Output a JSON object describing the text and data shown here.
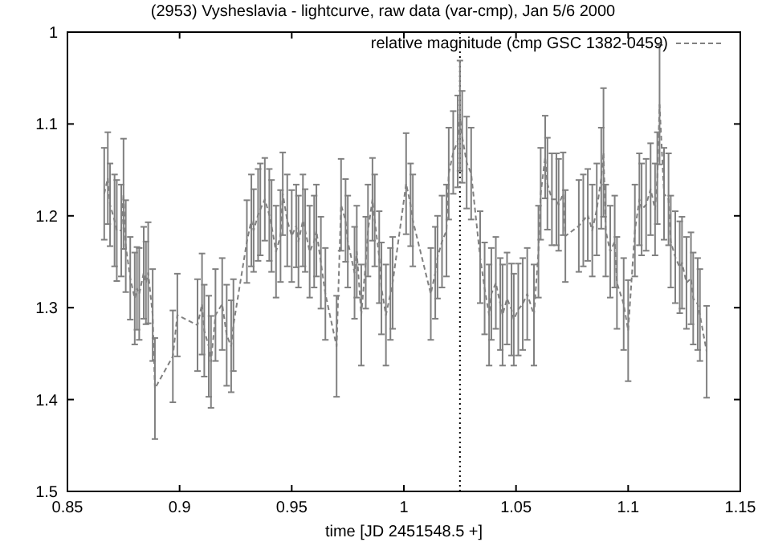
{
  "chart_data": {
    "type": "line",
    "title": "(2953) Vysheslavia - lightcurve, raw data (var-cmp), Jan 5/6 2000",
    "xlabel": "time [JD 2451548.5 +]",
    "xlim": [
      0.85,
      1.15
    ],
    "xticks": [
      0.85,
      0.9,
      0.95,
      1,
      1.05,
      1.1,
      1.15
    ],
    "ylim": [
      1.5,
      1
    ],
    "yticks": [
      1,
      1.1,
      1.2,
      1.3,
      1.4,
      1.5
    ],
    "grid": false,
    "legend": "top right",
    "marker": "none",
    "line_style": "dashed",
    "ref_lines": [
      {
        "axis": "x",
        "value": 1.025,
        "line_style": "dotted",
        "color": "#000000"
      }
    ],
    "x": [
      0.8664,
      0.868,
      0.869,
      0.871,
      0.872,
      0.874,
      0.875,
      0.876,
      0.878,
      0.88,
      0.881,
      0.882,
      0.884,
      0.885,
      0.886,
      0.888,
      0.889,
      0.897,
      0.899,
      0.908,
      0.91,
      0.911,
      0.913,
      0.914,
      0.916,
      0.919,
      0.921,
      0.923,
      0.924,
      0.93,
      0.932,
      0.933,
      0.935,
      0.936,
      0.938,
      0.94,
      0.941,
      0.943,
      0.945,
      0.946,
      0.948,
      0.95,
      0.952,
      0.953,
      0.955,
      0.956,
      0.958,
      0.96,
      0.961,
      0.963,
      0.965,
      0.97,
      0.972,
      0.974,
      0.975,
      0.978,
      0.979,
      0.981,
      0.983,
      0.984,
      0.986,
      0.987,
      0.989,
      0.99,
      0.992,
      0.994,
      0.995,
      1.001,
      1.003,
      1.004,
      1.012,
      1.014,
      1.015,
      1.017,
      1.019,
      1.02,
      1.022,
      1.024,
      1.025,
      1.026,
      1.028,
      1.03,
      1.034,
      1.036,
      1.038,
      1.039,
      1.041,
      1.043,
      1.044,
      1.046,
      1.048,
      1.049,
      1.051,
      1.053,
      1.055,
      1.058,
      1.06,
      1.061,
      1.063,
      1.064,
      1.066,
      1.068,
      1.069,
      1.071,
      1.072,
      1.078,
      1.08,
      1.082,
      1.084,
      1.086,
      1.088,
      1.089,
      1.09,
      1.092,
      1.094,
      1.095,
      1.098,
      1.1,
      1.103,
      1.105,
      1.106,
      1.108,
      1.11,
      1.112,
      1.113,
      1.114,
      1.116,
      1.118,
      1.119,
      1.121,
      1.123,
      1.124,
      1.126,
      1.128,
      1.129,
      1.131,
      1.132,
      1.135
    ],
    "series": [
      {
        "name": "relative magnitude (cmp GSC 1382-0459)",
        "color": "#808080",
        "values": [
          1.176,
          1.159,
          1.188,
          1.205,
          1.216,
          1.216,
          1.176,
          1.233,
          1.268,
          1.29,
          1.279,
          1.285,
          1.262,
          1.273,
          1.262,
          1.308,
          1.388,
          1.353,
          1.308,
          1.319,
          1.296,
          1.325,
          1.342,
          1.359,
          1.308,
          1.296,
          1.33,
          1.342,
          1.319,
          1.228,
          1.205,
          1.216,
          1.199,
          1.193,
          1.182,
          1.199,
          1.211,
          1.239,
          1.222,
          1.176,
          1.205,
          1.222,
          1.211,
          1.228,
          1.205,
          1.216,
          1.239,
          1.228,
          1.216,
          1.251,
          1.285,
          1.342,
          1.188,
          1.205,
          1.228,
          1.262,
          1.239,
          1.308,
          1.251,
          1.216,
          1.182,
          1.205,
          1.245,
          1.279,
          1.308,
          1.285,
          1.273,
          1.165,
          1.188,
          1.205,
          1.285,
          1.262,
          1.245,
          1.228,
          1.216,
          1.154,
          1.131,
          1.119,
          1.091,
          1.114,
          1.142,
          1.154,
          1.245,
          1.279,
          1.308,
          1.285,
          1.273,
          1.296,
          1.308,
          1.29,
          1.302,
          1.313,
          1.302,
          1.296,
          1.285,
          1.308,
          1.239,
          1.176,
          1.136,
          1.165,
          1.182,
          1.182,
          1.188,
          1.176,
          1.222,
          1.211,
          1.205,
          1.199,
          1.216,
          1.193,
          1.159,
          1.131,
          1.216,
          1.239,
          1.228,
          1.273,
          1.296,
          1.325,
          1.216,
          1.182,
          1.193,
          1.188,
          1.171,
          1.193,
          1.159,
          1.079,
          1.176,
          1.182,
          1.228,
          1.245,
          1.256,
          1.251,
          1.273,
          1.268,
          1.29,
          1.296,
          1.308,
          1.348
        ],
        "errors": [
          0.05,
          0.05,
          0.045,
          0.05,
          0.055,
          0.05,
          0.06,
          0.05,
          0.045,
          0.05,
          0.045,
          0.05,
          0.05,
          0.045,
          0.055,
          0.05,
          0.055,
          0.05,
          0.045,
          0.05,
          0.055,
          0.05,
          0.055,
          0.05,
          0.05,
          0.05,
          0.055,
          0.05,
          0.05,
          0.045,
          0.05,
          0.045,
          0.05,
          0.05,
          0.045,
          0.05,
          0.05,
          0.05,
          0.05,
          0.045,
          0.05,
          0.05,
          0.045,
          0.05,
          0.05,
          0.045,
          0.05,
          0.05,
          0.05,
          0.05,
          0.05,
          0.055,
          0.05,
          0.045,
          0.05,
          0.05,
          0.05,
          0.055,
          0.05,
          0.05,
          0.045,
          0.05,
          0.05,
          0.05,
          0.055,
          0.05,
          0.05,
          0.055,
          0.045,
          0.05,
          0.05,
          0.05,
          0.045,
          0.05,
          0.05,
          0.05,
          0.045,
          0.05,
          0.06,
          0.05,
          0.05,
          0.05,
          0.05,
          0.05,
          0.055,
          0.05,
          0.05,
          0.05,
          0.055,
          0.05,
          0.05,
          0.05,
          0.05,
          0.05,
          0.05,
          0.055,
          0.05,
          0.05,
          0.045,
          0.05,
          0.05,
          0.05,
          0.05,
          0.045,
          0.05,
          0.05,
          0.05,
          0.05,
          0.05,
          0.05,
          0.055,
          0.07,
          0.05,
          0.05,
          0.05,
          0.05,
          0.05,
          0.055,
          0.05,
          0.05,
          0.05,
          0.05,
          0.05,
          0.05,
          0.05,
          0.065,
          0.05,
          0.05,
          0.05,
          0.05,
          0.05,
          0.05,
          0.05,
          0.05,
          0.05,
          0.05,
          0.05,
          0.05
        ]
      }
    ]
  }
}
